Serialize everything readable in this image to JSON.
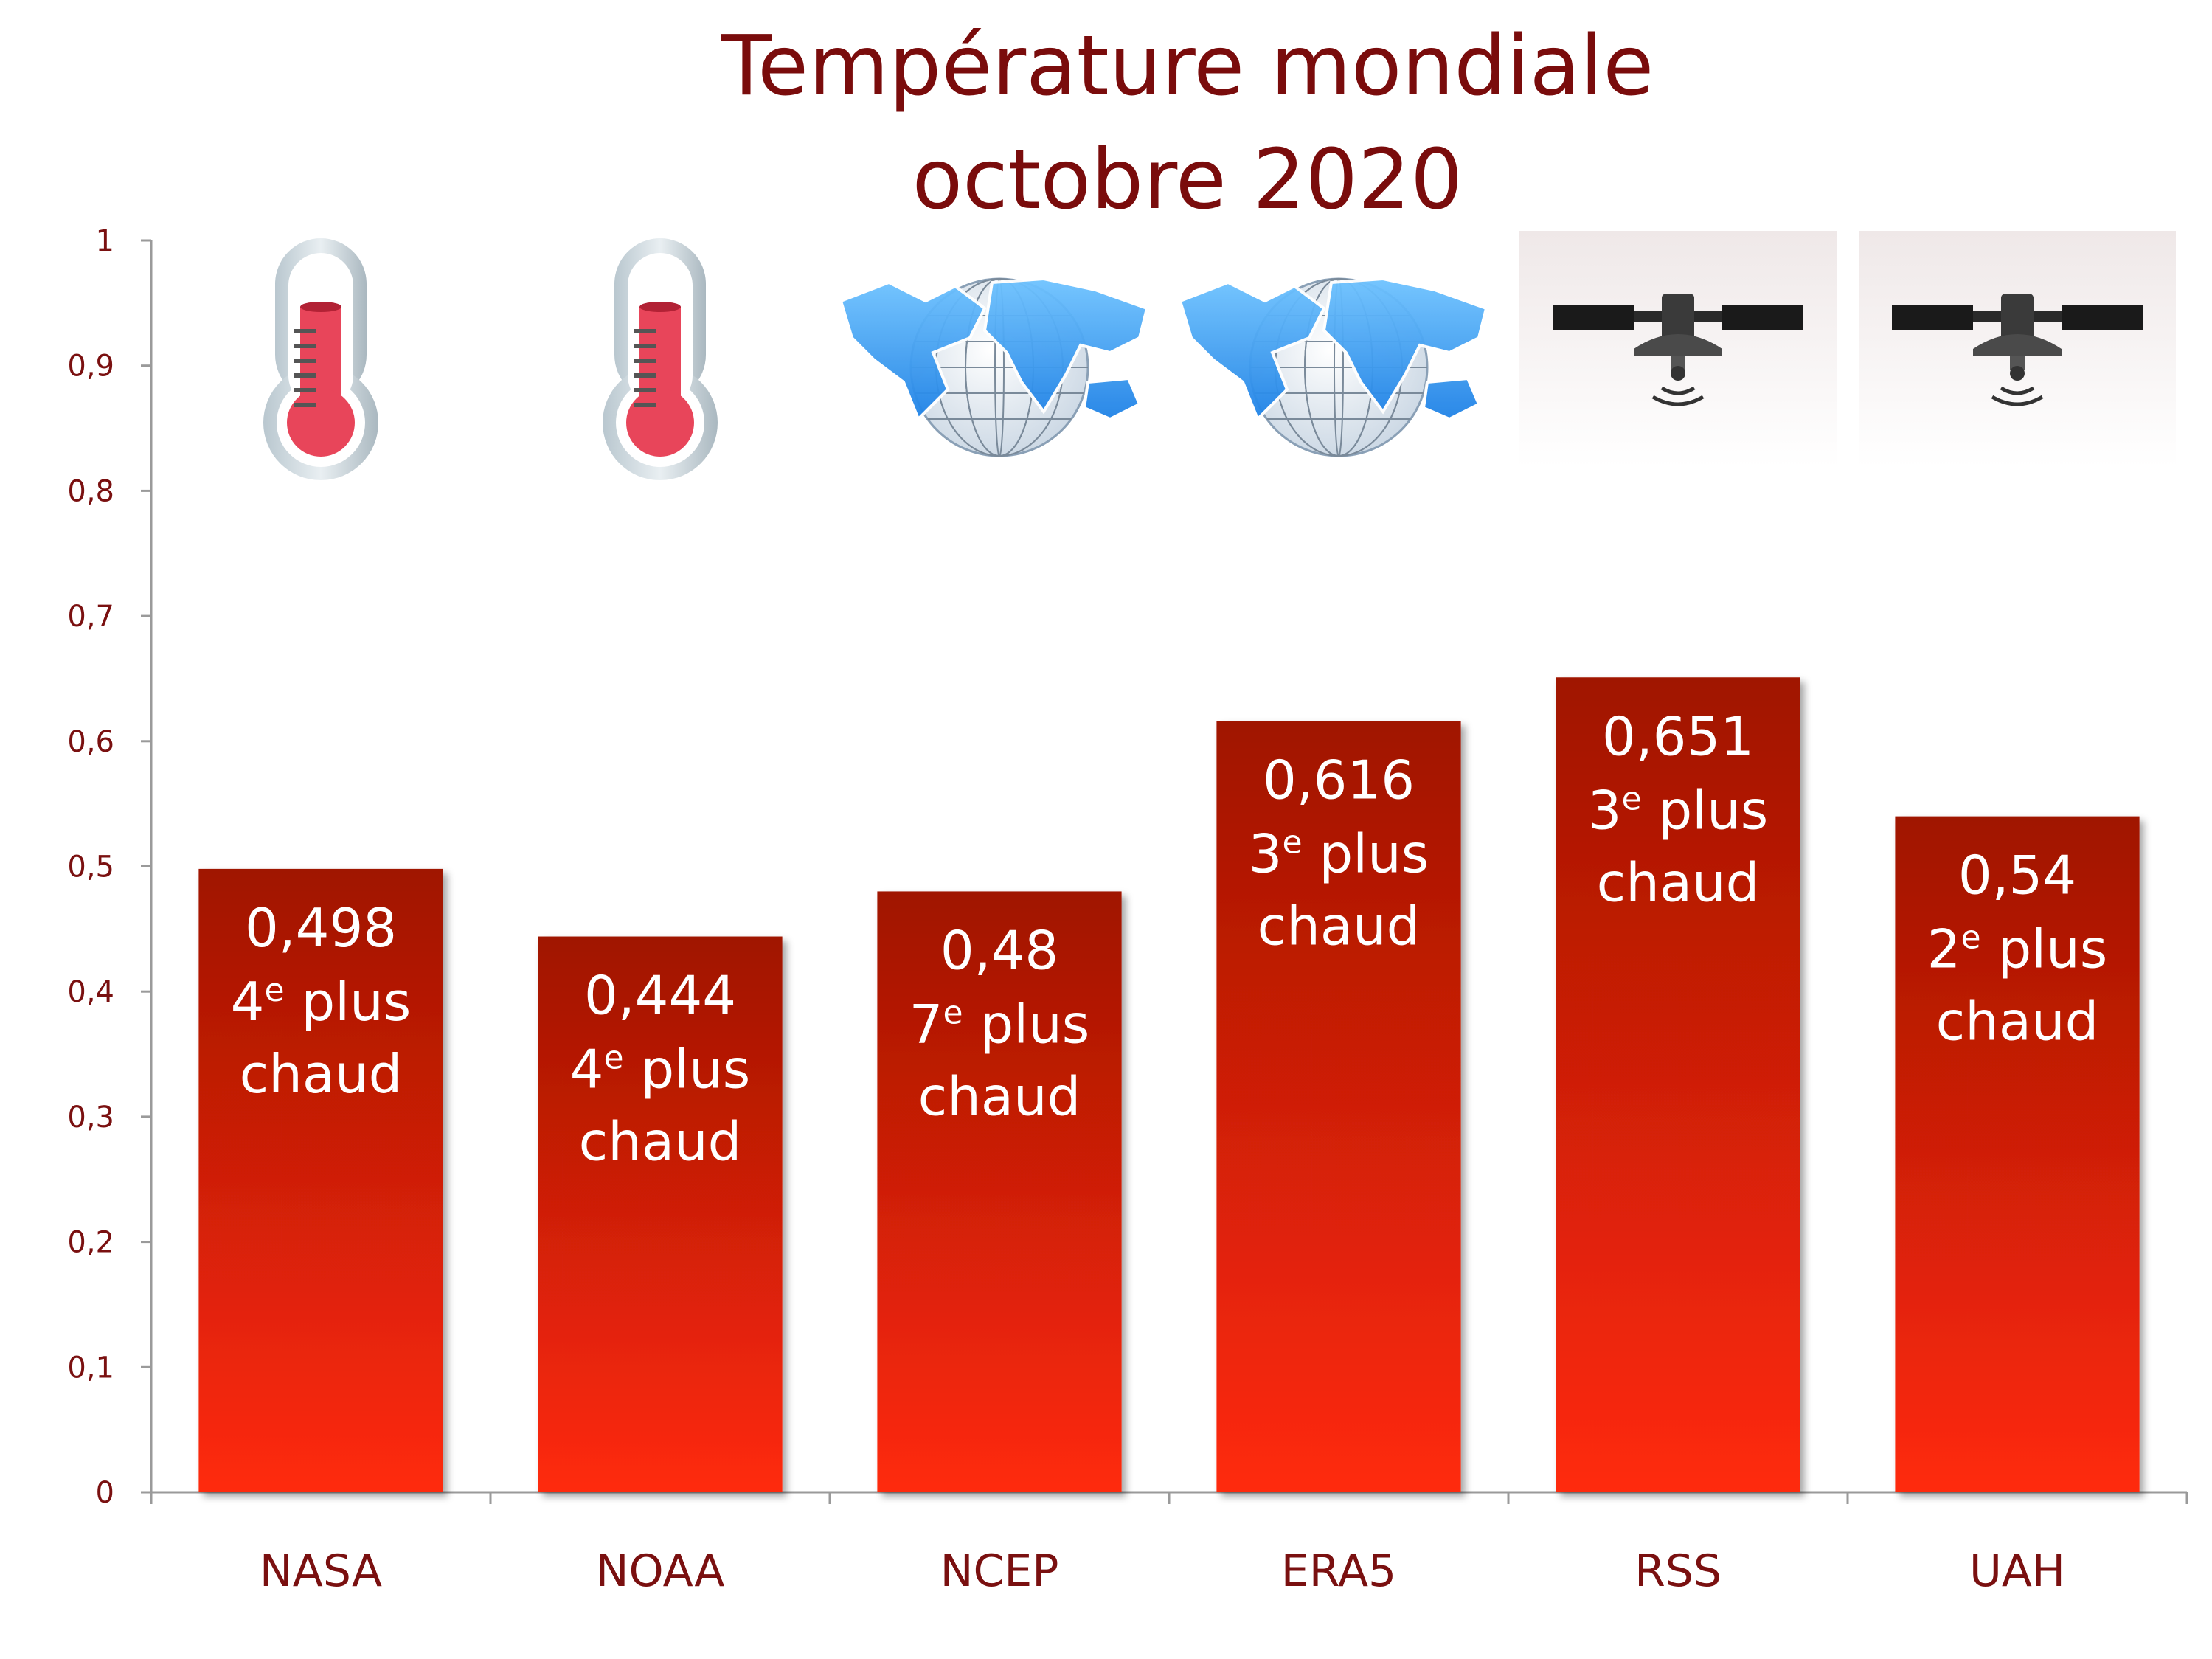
{
  "chart_data": {
    "type": "bar",
    "title": [
      "Température mondiale",
      "octobre 2020"
    ],
    "categories": [
      "NASA",
      "NOAA",
      "NCEP",
      "ERA5",
      "RSS",
      "UAH"
    ],
    "values": [
      0.498,
      0.444,
      0.48,
      0.616,
      0.651,
      0.54
    ],
    "value_labels": [
      "0,498",
      "0,444",
      "0,48",
      "0,616",
      "0,651",
      "0,54"
    ],
    "ranks": [
      {
        "num": "4",
        "sup": "e",
        "rest": " plus",
        "line2": "chaud"
      },
      {
        "num": "4",
        "sup": "e",
        "rest": " plus",
        "line2": "chaud"
      },
      {
        "num": "7",
        "sup": "e",
        "rest": " plus",
        "line2": "chaud"
      },
      {
        "num": "3",
        "sup": "e",
        "rest": " plus",
        "line2": "chaud"
      },
      {
        "num": "3",
        "sup": "e",
        "rest": " plus",
        "line2": "chaud"
      },
      {
        "num": "2",
        "sup": "e",
        "rest": " plus",
        "line2": "chaud"
      }
    ],
    "icons": [
      "thermometer-icon",
      "thermometer-icon",
      "globe-icon",
      "globe-icon",
      "satellite-icon",
      "satellite-icon"
    ],
    "ylim": [
      0,
      1
    ],
    "yticks": [
      0,
      0.1,
      0.2,
      0.3,
      0.4,
      0.5,
      0.6,
      0.7,
      0.8,
      0.9,
      1
    ],
    "ytick_labels": [
      "0",
      "0,1",
      "0,2",
      "0,3",
      "0,4",
      "0,5",
      "0,6",
      "0,7",
      "0,8",
      "0,9",
      "1"
    ],
    "xlabel": "",
    "ylabel": "",
    "grid": false,
    "colors": {
      "bar_top": "#a01405",
      "bar_bottom": "#ff2a08",
      "title": "#7a0c0c",
      "axis_text": "#7a1010"
    }
  }
}
